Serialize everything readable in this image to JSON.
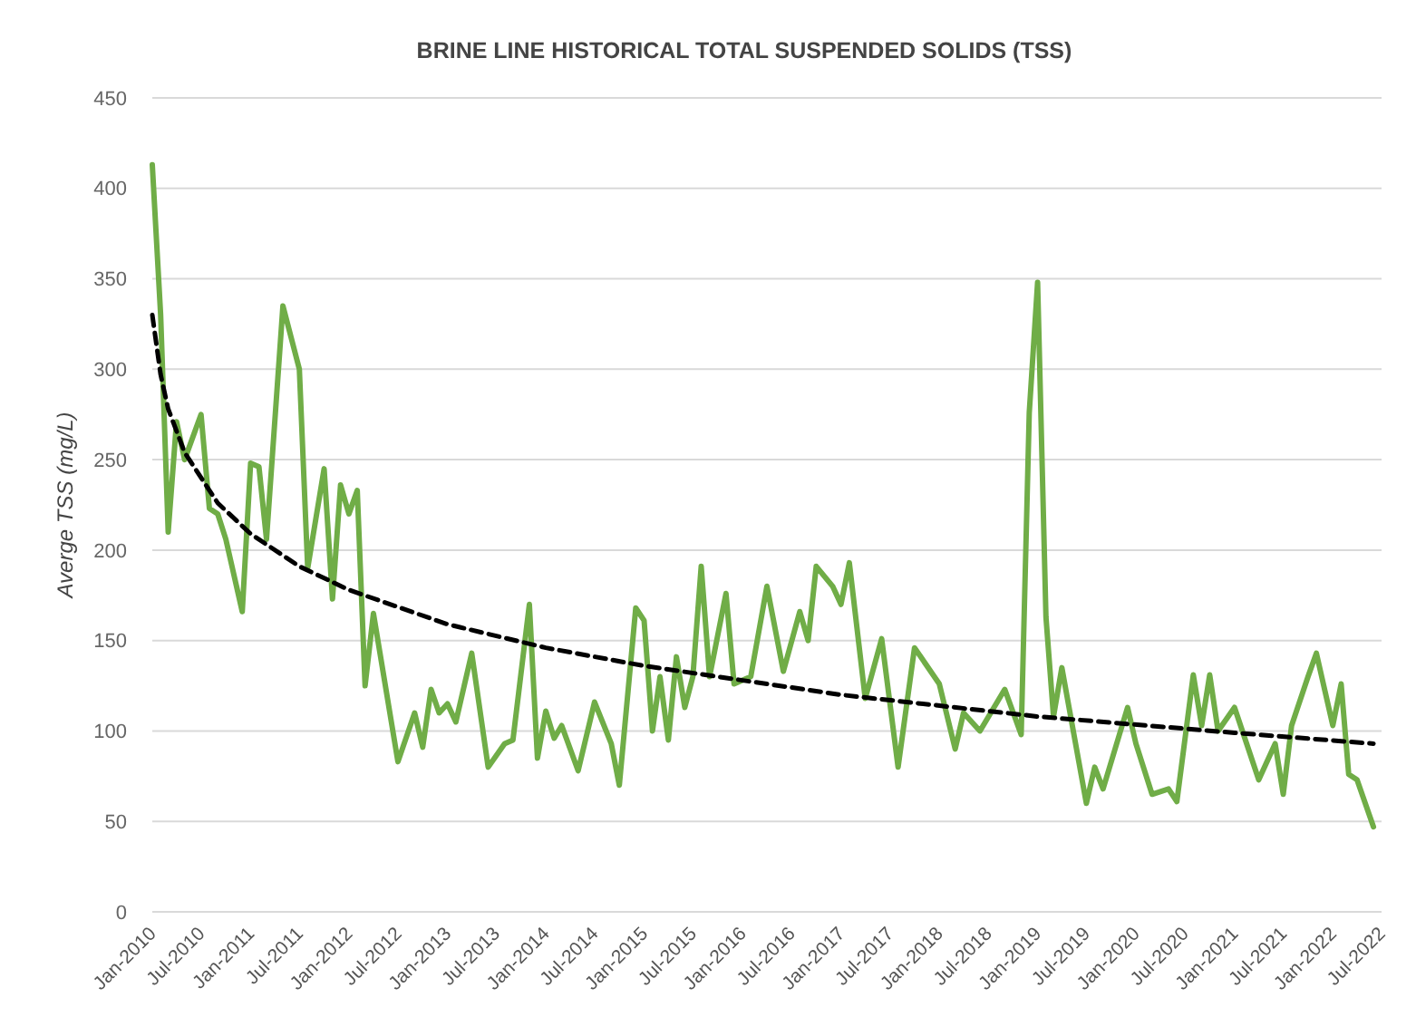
{
  "chart_data": {
    "type": "line",
    "title": "BRINE LINE HISTORICAL TOTAL SUSPENDED SOLIDS (TSS)",
    "ylabel": "Averge TSS (mg/L)",
    "xlim": [
      "2010-01",
      "2022-07"
    ],
    "xticks": [
      {
        "value": "2010-01",
        "label": "Jan-2010"
      },
      {
        "value": "2010-07",
        "label": "Jul-2010"
      },
      {
        "value": "2011-01",
        "label": "Jan-2011"
      },
      {
        "value": "2011-07",
        "label": "Jul-2011"
      },
      {
        "value": "2012-01",
        "label": "Jan-2012"
      },
      {
        "value": "2012-07",
        "label": "Jul-2012"
      },
      {
        "value": "2013-01",
        "label": "Jan-2013"
      },
      {
        "value": "2013-07",
        "label": "Jul-2013"
      },
      {
        "value": "2014-01",
        "label": "Jan-2014"
      },
      {
        "value": "2014-07",
        "label": "Jul-2014"
      },
      {
        "value": "2015-01",
        "label": "Jan-2015"
      },
      {
        "value": "2015-07",
        "label": "Jul-2015"
      },
      {
        "value": "2016-01",
        "label": "Jan-2016"
      },
      {
        "value": "2016-07",
        "label": "Jul-2016"
      },
      {
        "value": "2017-01",
        "label": "Jan-2017"
      },
      {
        "value": "2017-07",
        "label": "Jul-2017"
      },
      {
        "value": "2018-01",
        "label": "Jan-2018"
      },
      {
        "value": "2018-07",
        "label": "Jul-2018"
      },
      {
        "value": "2019-01",
        "label": "Jan-2019"
      },
      {
        "value": "2019-07",
        "label": "Jul-2019"
      },
      {
        "value": "2020-01",
        "label": "Jan-2020"
      },
      {
        "value": "2020-07",
        "label": "Jul-2020"
      },
      {
        "value": "2021-01",
        "label": "Jan-2021"
      },
      {
        "value": "2021-07",
        "label": "Jul-2021"
      },
      {
        "value": "2022-01",
        "label": "Jan-2022"
      },
      {
        "value": "2022-07",
        "label": "Jul-2022"
      }
    ],
    "ylim": [
      0,
      450
    ],
    "yticks": [
      0,
      50,
      100,
      150,
      200,
      250,
      300,
      350,
      400,
      450
    ],
    "grid": "y",
    "series": [
      {
        "color": "#70ad47",
        "line_style": "solid",
        "x": [
          "2010-01",
          "2010-02",
          "2010-03",
          "2010-04",
          "2010-05",
          "2010-07",
          "2010-08",
          "2010-09",
          "2010-10",
          "2010-12",
          "2011-01",
          "2011-02",
          "2011-03",
          "2011-05",
          "2011-07",
          "2011-08",
          "2011-10",
          "2011-11",
          "2011-12",
          "2012-01",
          "2012-02",
          "2012-03",
          "2012-04",
          "2012-07",
          "2012-09",
          "2012-10",
          "2012-11",
          "2012-12",
          "2013-01",
          "2013-02",
          "2013-04",
          "2013-06",
          "2013-08",
          "2013-09",
          "2013-11",
          "2013-12",
          "2014-01",
          "2014-02",
          "2014-03",
          "2014-05",
          "2014-07",
          "2014-09",
          "2014-10",
          "2014-12",
          "2015-01",
          "2015-02",
          "2015-03",
          "2015-04",
          "2015-05",
          "2015-06",
          "2015-07",
          "2015-08",
          "2015-09",
          "2015-11",
          "2015-12",
          "2016-02",
          "2016-04",
          "2016-06",
          "2016-08",
          "2016-09",
          "2016-10",
          "2016-12",
          "2017-01",
          "2017-02",
          "2017-04",
          "2017-06",
          "2017-08",
          "2017-10",
          "2018-01",
          "2018-03",
          "2018-04",
          "2018-06",
          "2018-09",
          "2018-11",
          "2018-12",
          "2019-01",
          "2019-02",
          "2019-03",
          "2019-04",
          "2019-07",
          "2019-08",
          "2019-09",
          "2019-12",
          "2020-01",
          "2020-03",
          "2020-05",
          "2020-06",
          "2020-08",
          "2020-09",
          "2020-10",
          "2020-11",
          "2021-01",
          "2021-04",
          "2021-06",
          "2021-07",
          "2021-08",
          "2021-10",
          "2021-11",
          "2022-01",
          "2022-02",
          "2022-03",
          "2022-04",
          "2022-06"
        ],
        "values": [
          413,
          330,
          210,
          271,
          250,
          275,
          223,
          220,
          206,
          166,
          248,
          246,
          206,
          335,
          300,
          190,
          245,
          173,
          236,
          220,
          233,
          125,
          165,
          83,
          110,
          91,
          123,
          110,
          115,
          105,
          143,
          80,
          93,
          95,
          170,
          85,
          111,
          96,
          103,
          78,
          116,
          93,
          70,
          168,
          161,
          100,
          130,
          95,
          141,
          113,
          130,
          191,
          130,
          176,
          126,
          130,
          180,
          133,
          166,
          150,
          191,
          180,
          170,
          193,
          118,
          151,
          80,
          146,
          126,
          90,
          110,
          100,
          123,
          98,
          276,
          348,
          163,
          108,
          135,
          60,
          80,
          68,
          113,
          93,
          65,
          68,
          61,
          131,
          103,
          131,
          100,
          113,
          73,
          93,
          65,
          103,
          130,
          143,
          103,
          126,
          76,
          73,
          47
        ]
      },
      {
        "color": "#000000",
        "line_style": "dashed",
        "x": [
          "2010-01",
          "2010-02",
          "2010-03",
          "2010-05",
          "2010-09",
          "2011-01",
          "2011-07",
          "2012-01",
          "2013-01",
          "2014-01",
          "2015-01",
          "2017-01",
          "2019-01",
          "2021-01",
          "2022-06"
        ],
        "values": [
          330,
          297,
          278,
          254,
          226,
          209,
          191,
          178,
          159,
          146,
          136,
          120,
          108,
          99,
          93
        ]
      }
    ]
  }
}
